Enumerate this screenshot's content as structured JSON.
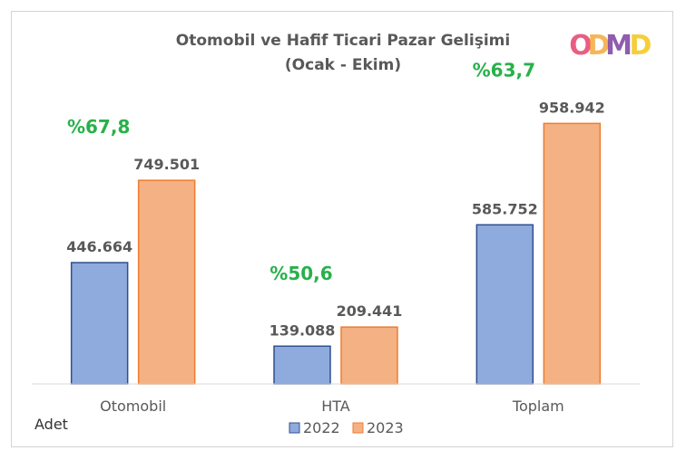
{
  "chart_data": {
    "type": "bar",
    "title_line1": "Otomobil ve Hafif Ticari Pazar Gelişimi",
    "title_line2": "(Ocak - Ekim)",
    "unit_label": "Adet",
    "categories": [
      "Otomobil",
      "HTA",
      "Toplam"
    ],
    "series": [
      {
        "name": "2022",
        "values": [
          446664,
          139088,
          585752
        ],
        "labels": [
          "446.664",
          "139.088",
          "585.752"
        ],
        "color": "#8faadc",
        "stroke": "#2f4f8f"
      },
      {
        "name": "2023",
        "values": [
          749501,
          209441,
          958942
        ],
        "labels": [
          "749.501",
          "209.441",
          "958.942"
        ],
        "color": "#f4b183",
        "stroke": "#ed7d31"
      }
    ],
    "growth_labels": [
      "%67,8",
      "%50,6",
      "%63,7"
    ],
    "growth_color": "#27b14a",
    "ylim": [
      0,
      1000000
    ],
    "grid": false,
    "legend_position": "bottom"
  },
  "logo": {
    "letters": [
      "O",
      "D",
      "M",
      "D"
    ],
    "colors": [
      "#e83f6f",
      "#f2a93b",
      "#7b3fa0",
      "#f5c518"
    ]
  }
}
